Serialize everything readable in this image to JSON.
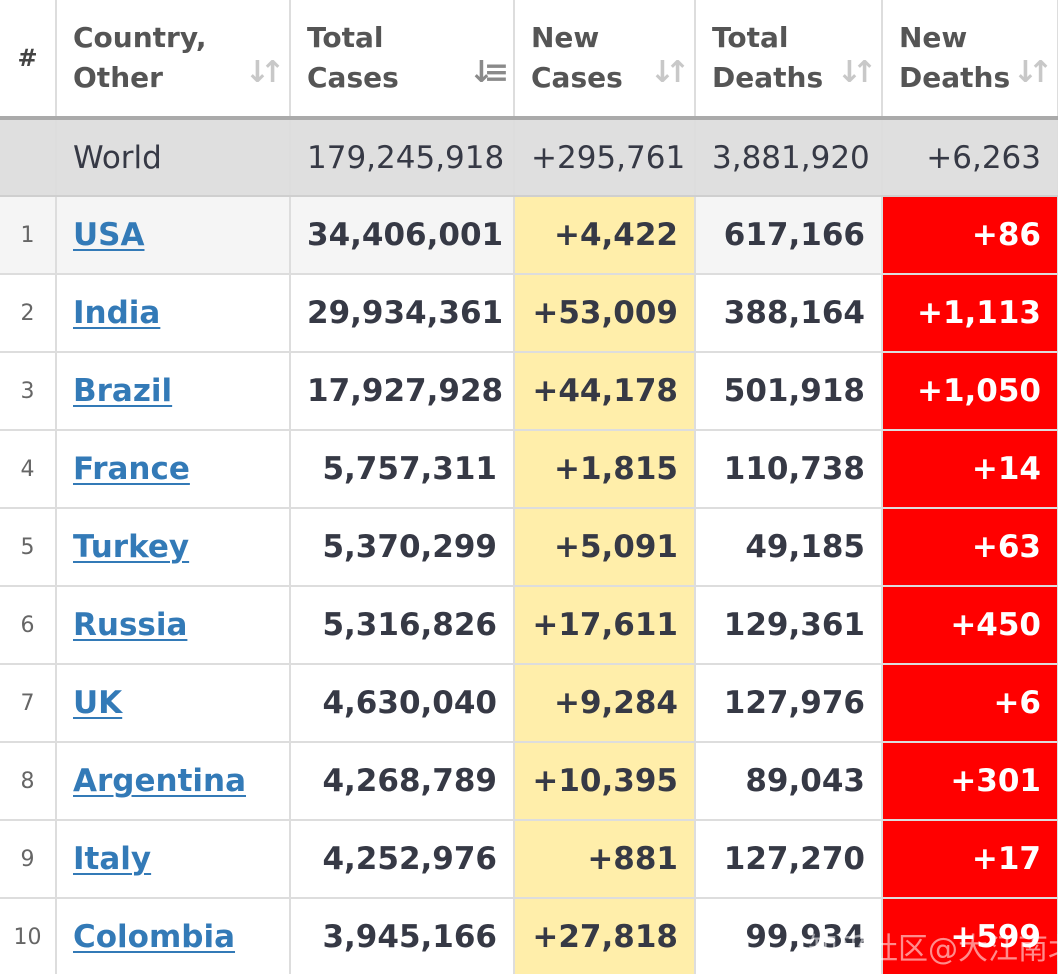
{
  "table": {
    "headers": {
      "num": "#",
      "country": "Country, Other",
      "total_cases": "Total Cases",
      "new_cases": "New Cases",
      "total_deaths": "Total Deaths",
      "new_deaths": "New Deaths"
    },
    "sort": {
      "column": "total_cases",
      "direction": "descending"
    },
    "world": {
      "country": "World",
      "total_cases": "179,245,918",
      "new_cases": "+295,761",
      "total_deaths": "3,881,920",
      "new_deaths": "+6,263"
    },
    "rows": [
      {
        "num": "1",
        "country": "USA",
        "total_cases": "34,406,001",
        "new_cases": "+4,422",
        "total_deaths": "617,166",
        "new_deaths": "+86"
      },
      {
        "num": "2",
        "country": "India",
        "total_cases": "29,934,361",
        "new_cases": "+53,009",
        "total_deaths": "388,164",
        "new_deaths": "+1,113"
      },
      {
        "num": "3",
        "country": "Brazil",
        "total_cases": "17,927,928",
        "new_cases": "+44,178",
        "total_deaths": "501,918",
        "new_deaths": "+1,050"
      },
      {
        "num": "4",
        "country": "France",
        "total_cases": "5,757,311",
        "new_cases": "+1,815",
        "total_deaths": "110,738",
        "new_deaths": "+14"
      },
      {
        "num": "5",
        "country": "Turkey",
        "total_cases": "5,370,299",
        "new_cases": "+5,091",
        "total_deaths": "49,185",
        "new_deaths": "+63"
      },
      {
        "num": "6",
        "country": "Russia",
        "total_cases": "5,316,826",
        "new_cases": "+17,611",
        "total_deaths": "129,361",
        "new_deaths": "+450"
      },
      {
        "num": "7",
        "country": "UK",
        "total_cases": "4,630,040",
        "new_cases": "+9,284",
        "total_deaths": "127,976",
        "new_deaths": "+6"
      },
      {
        "num": "8",
        "country": "Argentina",
        "total_cases": "4,268,789",
        "new_cases": "+10,395",
        "total_deaths": "89,043",
        "new_deaths": "+301"
      },
      {
        "num": "9",
        "country": "Italy",
        "total_cases": "4,252,976",
        "new_cases": "+881",
        "total_deaths": "127,270",
        "new_deaths": "+17"
      },
      {
        "num": "10",
        "country": "Colombia",
        "total_cases": "3,945,166",
        "new_cases": "+27,818",
        "total_deaths": "99,934",
        "new_deaths": "+599"
      }
    ]
  },
  "watermark": "知乎社区@大江南北",
  "colors": {
    "link": "#337ab7",
    "new_cases_bg": "#ffeeaa",
    "new_deaths_bg": "#ff0000",
    "world_row_bg": "#dfdfdf",
    "header_border": "#aaaaaa"
  },
  "icons": {
    "sort_unsorted": "sort-arrows-icon",
    "sort_active": "sort-descending-icon"
  }
}
